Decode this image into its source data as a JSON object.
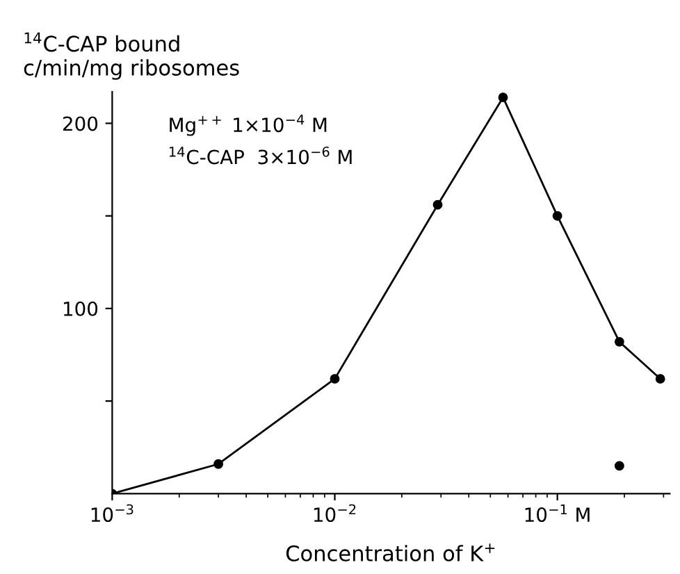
{
  "chart_data": {
    "type": "line",
    "xlabel": "Concentration of K$^{+}$",
    "ylabel": "$^{14}$C-CAP bound\nc/min/mg ribosomes",
    "log": "x",
    "xlim": [
      0.001,
      0.32
    ],
    "xticks": [
      {
        "value": 0.001,
        "label": "10$^{−3}$"
      },
      {
        "value": 0.01,
        "label": "10$^{−2}$"
      },
      {
        "value": 0.1,
        "label": "10$^{−1}$ M"
      }
    ],
    "ylim": [
      0,
      217
    ],
    "yticks": [
      {
        "value": 50,
        "label": null
      },
      100,
      {
        "value": 150,
        "label": null
      },
      200
    ],
    "grid": false,
    "marker": "circle",
    "line_style": "solid",
    "series": [
      {
        "color": "#000000",
        "x": [
          0.001,
          0.003,
          0.01,
          0.029,
          0.057,
          0.1,
          0.19,
          0.29
        ],
        "values": [
          0,
          16,
          62,
          156,
          214,
          150,
          82,
          62
        ]
      },
      {
        "type": "scatter",
        "color": "#000000",
        "x": [
          0.19
        ],
        "values": [
          15
        ]
      }
    ],
    "annotations": [
      "Mg$^{++}$ 1×10$^{−4}$ M",
      "$^{14}$C-CAP  3×10$^{−6}$ M"
    ]
  }
}
